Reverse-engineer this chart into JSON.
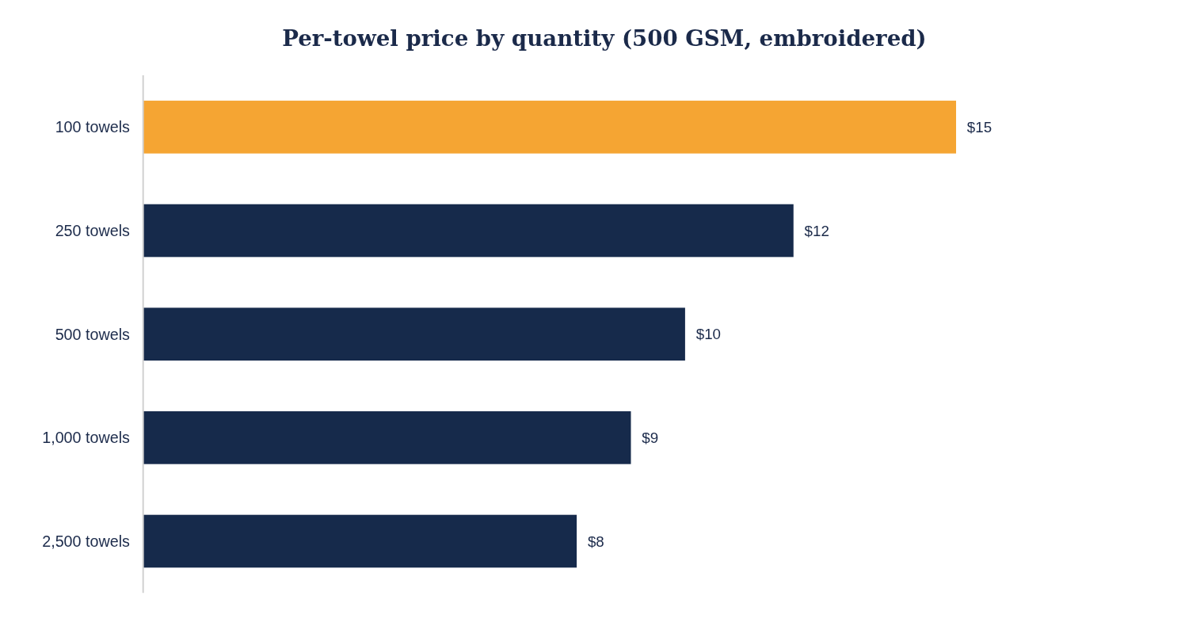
{
  "chart_data": {
    "type": "bar",
    "orientation": "horizontal",
    "title": "Per-towel price by quantity (500 GSM, embroidered)",
    "categories": [
      "100 towels",
      "250 towels",
      "500 towels",
      "1,000 towels",
      "2,500 towels"
    ],
    "values": [
      15,
      12,
      10,
      9,
      8
    ],
    "value_labels": [
      "$15",
      "$12",
      "$10",
      "$9",
      "$8"
    ],
    "colors": [
      "#f5a533",
      "#162a4b",
      "#162a4b",
      "#162a4b",
      "#162a4b"
    ],
    "grid": false
  }
}
